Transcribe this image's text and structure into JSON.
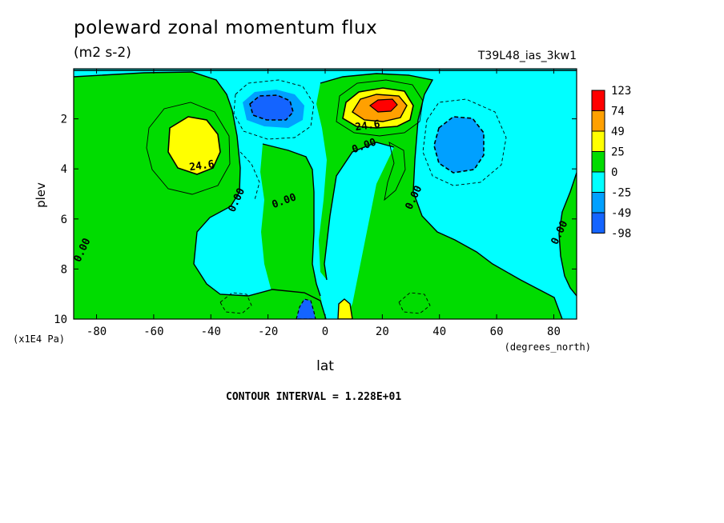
{
  "header": {
    "title": "poleward zonal momentum flux",
    "units": "(m2 s-2)",
    "run_id": "T39L48_ias_3kw1"
  },
  "footer": {
    "contour_interval": "CONTOUR INTERVAL = 1.228E+01"
  },
  "chart_data": {
    "type": "heatmap",
    "title": "poleward zonal momentum flux",
    "xlabel": "lat",
    "xunits": "(degrees_north)",
    "ylabel": "plev",
    "yunits": "(x1E4 Pa)",
    "xlim": [
      -88,
      88
    ],
    "ylim": [
      10,
      0
    ],
    "x_ticks": [
      -80,
      -60,
      -40,
      -20,
      0,
      20,
      40,
      60,
      80
    ],
    "y_ticks": [
      2,
      4,
      6,
      8,
      10
    ],
    "colorbar": {
      "labels": [
        "123",
        "74",
        "49",
        "25",
        "0",
        "-25",
        "-49",
        "-98"
      ],
      "colors": [
        "#ff0000",
        "#ffa000",
        "#ffff00",
        "#00dc00",
        "#00ffff",
        "#00a0ff",
        "#1464ff"
      ]
    },
    "contour_labels": [
      {
        "text": "24.6",
        "lat": -43,
        "plev": 4.0
      },
      {
        "text": "24.6",
        "lat": 15,
        "plev": 2.4
      },
      {
        "text": "0.00",
        "lat": 14,
        "plev": 3.2
      },
      {
        "text": "0.00",
        "lat": -30,
        "plev": 5.3
      },
      {
        "text": "0.00",
        "lat": -14,
        "plev": 5.4
      },
      {
        "text": "0.00",
        "lat": 32,
        "plev": 5.2
      },
      {
        "text": "0.00",
        "lat": 83,
        "plev": 6.6
      },
      {
        "text": "0.00",
        "lat": -84,
        "plev": 7.3
      }
    ],
    "features": [
      {
        "sign": "positive",
        "lat": -48,
        "plev": 3.0,
        "peak_level": 25
      },
      {
        "sign": "negative",
        "lat": -19,
        "plev": 1.7,
        "peak_level": -49
      },
      {
        "sign": "positive",
        "lat": 19,
        "plev": 1.7,
        "peak_level": 74
      },
      {
        "sign": "negative",
        "lat": 46,
        "plev": 3.0,
        "peak_level": -49
      },
      {
        "sign": "negative",
        "lat": -7,
        "plev": 10,
        "peak_level": -49
      },
      {
        "sign": "positive",
        "lat": 7,
        "plev": 10,
        "peak_level": 25
      }
    ]
  }
}
